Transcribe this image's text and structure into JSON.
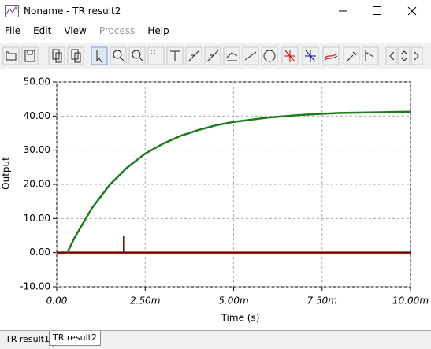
{
  "window": {
    "title": "Noname - TR result2"
  },
  "menu": [
    "File",
    "Edit",
    "View",
    "Process",
    "Help"
  ],
  "tabs": [
    "TR result1",
    "TR result2"
  ],
  "chart_data": {
    "type": "line",
    "xlabel": "Time (s)",
    "ylabel": "Output",
    "xlim": [
      0,
      0.01
    ],
    "xticks": [
      {
        "value": 0,
        "label": "0.00"
      },
      {
        "value": 0.0025,
        "label": "2.50m"
      },
      {
        "value": 0.005,
        "label": "5.00m"
      },
      {
        "value": 0.0075,
        "label": "7.50m"
      },
      {
        "value": 0.01,
        "label": "10.00m"
      }
    ],
    "ylim": [
      -10,
      50
    ],
    "yticks": [
      {
        "value": -10,
        "label": "-10.00"
      },
      {
        "value": 0,
        "label": "0.00"
      },
      {
        "value": 10,
        "label": "10.00"
      },
      {
        "value": 20,
        "label": "20.00"
      },
      {
        "value": 30,
        "label": "30.00"
      },
      {
        "value": 40,
        "label": "40.00"
      },
      {
        "value": 50,
        "label": "50.00"
      }
    ],
    "grid": true,
    "series": [
      {
        "color": "#1e7a1e",
        "x": [
          0.0003,
          0.0005,
          0.001,
          0.0015,
          0.002,
          0.0025,
          0.003,
          0.0035,
          0.004,
          0.0045,
          0.005,
          0.006,
          0.007,
          0.008,
          0.009,
          0.01
        ],
        "values": [
          0,
          4.3,
          13.1,
          19.9,
          25.0,
          29.0,
          31.9,
          34.2,
          35.9,
          37.3,
          38.3,
          39.6,
          40.4,
          40.9,
          41.1,
          41.3
        ]
      },
      {
        "color": "#7a0000",
        "x": [
          0,
          0.0019,
          0.0019,
          0.0019,
          0.01
        ],
        "values": [
          0,
          0,
          5,
          0,
          0
        ]
      }
    ]
  }
}
